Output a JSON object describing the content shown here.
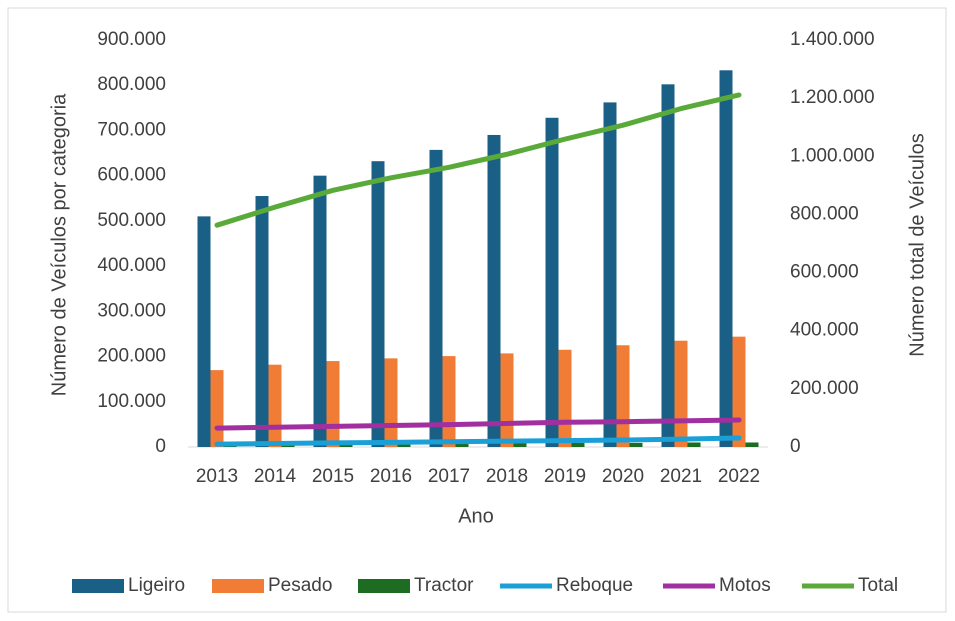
{
  "chart_data": {
    "type": "bar",
    "x_label": "Ano",
    "y_label": "Número de Veículos  por categoria",
    "y2_label": "Número total de Veículos",
    "categories": [
      "2013",
      "2014",
      "2015",
      "2016",
      "2017",
      "2018",
      "2019",
      "2020",
      "2021",
      "2022"
    ],
    "series": [
      {
        "name": "Ligeiro",
        "type": "bar",
        "color": "#1a5f85",
        "values": [
          510000,
          555000,
          600000,
          632000,
          657000,
          690000,
          728000,
          762000,
          802000,
          833000
        ]
      },
      {
        "name": "Pesado",
        "type": "bar",
        "color": "#f07c35",
        "values": [
          170000,
          182000,
          190000,
          196000,
          201000,
          207000,
          215000,
          225000,
          235000,
          244000
        ]
      },
      {
        "name": "Tractor",
        "type": "bar",
        "color": "#1e6b22",
        "values": [
          8000,
          8000,
          8000,
          8000,
          9000,
          9000,
          9000,
          9000,
          10000,
          10000
        ]
      },
      {
        "name": "Reboque",
        "type": "line",
        "axis": "y2",
        "color": "#1aa0d6",
        "values": [
          10000,
          12000,
          14000,
          16000,
          18000,
          20000,
          22000,
          24000,
          27000,
          31000
        ]
      },
      {
        "name": "Motos",
        "type": "line",
        "axis": "y2",
        "color": "#a12fa0",
        "values": [
          65000,
          68000,
          71000,
          74000,
          77000,
          81000,
          85000,
          87000,
          90000,
          93000
        ]
      },
      {
        "name": "Total",
        "type": "line",
        "axis": "y2",
        "color": "#5aaa3a",
        "values": [
          763000,
          825000,
          883000,
          926000,
          962000,
          1007000,
          1059000,
          1107000,
          1164000,
          1211000
        ]
      }
    ],
    "ylim": [
      0,
      900000
    ],
    "yticks": [
      0,
      {
        "value": 100000,
        "label": "100.000"
      },
      {
        "value": 200000,
        "label": "200.000"
      },
      {
        "value": 300000,
        "label": "300.000"
      },
      {
        "value": 400000,
        "label": "400.000"
      },
      {
        "value": 500000,
        "label": "500.000"
      },
      {
        "value": 600000,
        "label": "600.000"
      },
      {
        "value": 700000,
        "label": "700.000"
      },
      {
        "value": 800000,
        "label": "800.000"
      },
      {
        "value": 900000,
        "label": "900.000"
      }
    ],
    "y2lim": [
      0,
      1400000
    ],
    "y2ticks": [
      0,
      {
        "value": 200000,
        "label": "200.000"
      },
      {
        "value": 400000,
        "label": "400.000"
      },
      {
        "value": 600000,
        "label": "600.000"
      },
      {
        "value": 800000,
        "label": "800.000"
      },
      {
        "value": 1000000,
        "label": "1.000.000"
      },
      {
        "value": 1200000,
        "label": "1.200.000"
      },
      {
        "value": 1400000,
        "label": "1.400.000"
      }
    ],
    "grid": false,
    "legend": "bottom"
  }
}
